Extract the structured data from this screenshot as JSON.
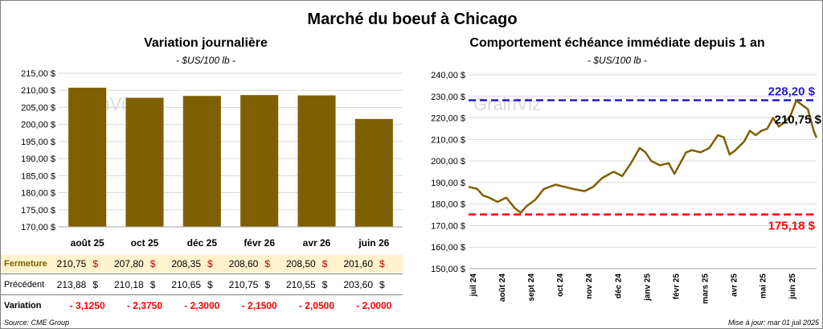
{
  "title": "Marché du boeuf à Chicago",
  "left": {
    "title": "Variation  journalière",
    "unit": "- $US/100 lb -",
    "watermark": "GrainViz"
  },
  "right": {
    "title": "Comportement  échéance immédiate depuis 1 an",
    "unit": "- $US/100 lb -",
    "watermark": "GrainViz",
    "high_label": "228,20 $",
    "current_label": "210,75 $",
    "low_label": "175,18 $"
  },
  "table": {
    "row1_label": "Fermeture",
    "row2_label": "Précédent",
    "row3_label": "Variation",
    "fermeture": [
      "210,75",
      "207,80",
      "208,35",
      "208,60",
      "208,50",
      "201,60"
    ],
    "precedent": [
      "213,88",
      "210,18",
      "210,65",
      "210,75",
      "210,55",
      "203,60"
    ],
    "variation": [
      "- 3,1250",
      "- 2,3750",
      "- 2,3000",
      "- 2,1500",
      "- 2,0500",
      "- 2,0000"
    ],
    "currency": "$"
  },
  "footer": {
    "source": "Source: CME Group",
    "updated": "Mise à jour: mar 01 juil 2025"
  },
  "colors": {
    "bar": "#7f6000",
    "line": "#7f6000",
    "high": "#1f1fbf",
    "low": "#ff0000",
    "fermeture_bg": "#fff2cc",
    "variation_text": "#ff0000"
  },
  "chart_data": [
    {
      "type": "bar",
      "title": "Variation  journalière",
      "subtitle": "- $US/100 lb -",
      "categories": [
        "août 25",
        "oct 25",
        "déc 25",
        "févr 26",
        "avr 26",
        "juin 26"
      ],
      "values": [
        210.75,
        207.8,
        208.35,
        208.6,
        208.5,
        201.6
      ],
      "ylim": [
        170,
        215
      ],
      "yticks": [
        "170,00 $",
        "175,00 $",
        "180,00 $",
        "185,00 $",
        "190,00 $",
        "195,00 $",
        "200,00 $",
        "205,00 $",
        "210,00 $",
        "215,00 $"
      ],
      "grid": true
    },
    {
      "type": "line",
      "title": "Comportement  échéance immédiate depuis 1 an",
      "subtitle": "- $US/100 lb -",
      "xlabels": [
        "juil 24",
        "août 24",
        "sept 24",
        "oct 24",
        "nov 24",
        "déc 24",
        "janv 25",
        "févr 25",
        "mars 25",
        "avr 25",
        "mai 25",
        "juin 25"
      ],
      "ylim": [
        150,
        240
      ],
      "yticks": [
        "150,00 $",
        "160,00 $",
        "170,00 $",
        "180,00 $",
        "190,00 $",
        "200,00 $",
        "210,00 $",
        "220,00 $",
        "230,00 $",
        "240,00 $"
      ],
      "x": [
        0,
        0.3,
        0.5,
        0.7,
        1.0,
        1.3,
        1.6,
        1.8,
        2.0,
        2.3,
        2.6,
        3.0,
        3.3,
        3.6,
        4.0,
        4.3,
        4.6,
        5.0,
        5.3,
        5.6,
        5.9,
        6.1,
        6.3,
        6.6,
        6.9,
        7.1,
        7.3,
        7.5,
        7.7,
        8.0,
        8.3,
        8.6,
        8.8,
        9.0,
        9.2,
        9.5,
        9.7,
        9.9,
        10.1,
        10.3,
        10.5,
        10.7,
        10.9,
        11.1,
        11.3,
        11.5,
        11.7,
        11.8,
        11.9,
        12.0
      ],
      "values": [
        188,
        187,
        184,
        183,
        181,
        183,
        178,
        176,
        179,
        182,
        187,
        189,
        188,
        187,
        186,
        188,
        192,
        195,
        193,
        199,
        206,
        204,
        200,
        198,
        199,
        194,
        199,
        204,
        205,
        204,
        206,
        212,
        211,
        203,
        205,
        209,
        214,
        212,
        214,
        215,
        220,
        216,
        218,
        221,
        228,
        226,
        224,
        219,
        214,
        210.75
      ],
      "high": 228.2,
      "low": 175.18,
      "current": 210.75,
      "grid": true
    }
  ]
}
